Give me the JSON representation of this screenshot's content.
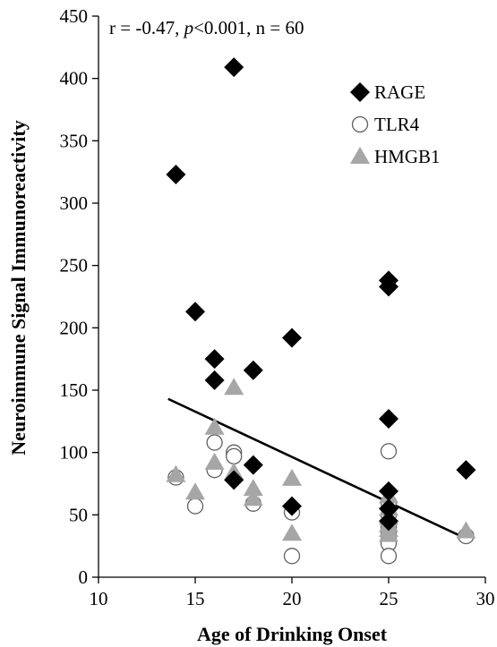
{
  "chart_data": {
    "type": "scatter",
    "title": "",
    "xlabel": "Age of Drinking Onset",
    "ylabel": "Neuroimmune Signal Immunoreactivity",
    "xlim": [
      10,
      30
    ],
    "ylim": [
      0,
      450
    ],
    "xticks": [
      "10",
      "15",
      "20",
      "25",
      "30"
    ],
    "yticks": [
      "0",
      "50",
      "100",
      "150",
      "200",
      "250",
      "300",
      "350",
      "400",
      "450"
    ],
    "grid": false,
    "legend_position": "top-right",
    "annotation": {
      "prefix": "r = -0.47, ",
      "p_symbol": "p",
      "suffix": "<0.001, n = 60"
    },
    "series": [
      {
        "name": "RAGE",
        "marker": "diamond",
        "color": "#000000",
        "points": [
          [
            14,
            323
          ],
          [
            15,
            213
          ],
          [
            16,
            175
          ],
          [
            16,
            158
          ],
          [
            17,
            409
          ],
          [
            17,
            78
          ],
          [
            18,
            166
          ],
          [
            18,
            90
          ],
          [
            20,
            192
          ],
          [
            20,
            57
          ],
          [
            25,
            238
          ],
          [
            25,
            233
          ],
          [
            25,
            127
          ],
          [
            25,
            69
          ],
          [
            25,
            55
          ],
          [
            25,
            45
          ],
          [
            29,
            86
          ]
        ]
      },
      {
        "name": "TLR4",
        "marker": "circle",
        "color": "#ffffff",
        "points": [
          [
            14,
            80
          ],
          [
            15,
            57
          ],
          [
            16,
            108
          ],
          [
            16,
            86
          ],
          [
            17,
            100
          ],
          [
            17,
            97
          ],
          [
            18,
            59
          ],
          [
            20,
            52
          ],
          [
            20,
            17
          ],
          [
            25,
            101
          ],
          [
            25,
            60
          ],
          [
            25,
            50
          ],
          [
            25,
            40
          ],
          [
            25,
            35
          ],
          [
            25,
            30
          ],
          [
            25,
            27
          ],
          [
            25,
            17
          ],
          [
            29,
            33
          ]
        ]
      },
      {
        "name": "HMGB1",
        "marker": "triangle",
        "color": "#a6a6a6",
        "points": [
          [
            14,
            82
          ],
          [
            15,
            68
          ],
          [
            16,
            120
          ],
          [
            16,
            92
          ],
          [
            17,
            152
          ],
          [
            17,
            84
          ],
          [
            18,
            71
          ],
          [
            18,
            63
          ],
          [
            20,
            79
          ],
          [
            20,
            35
          ],
          [
            25,
            65
          ],
          [
            25,
            55
          ],
          [
            25,
            48
          ],
          [
            25,
            42
          ],
          [
            25,
            38
          ],
          [
            25,
            34
          ],
          [
            29,
            37
          ]
        ]
      }
    ],
    "trendline": {
      "x": [
        13.6,
        29
      ],
      "y": [
        143,
        31
      ]
    }
  }
}
